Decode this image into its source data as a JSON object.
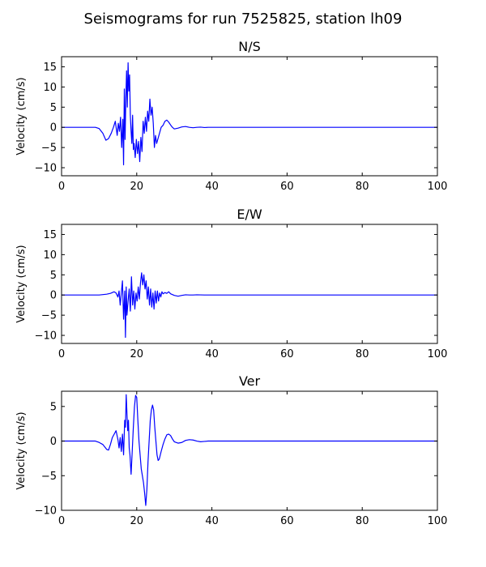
{
  "figure_title": "Seismograms for run 7525825, station lh09",
  "line_color": "#0000ff",
  "chart_data": [
    {
      "type": "line",
      "title": "N/S",
      "xlabel": "",
      "ylabel": "Velocity (cm/s)",
      "xlim": [
        0,
        100
      ],
      "ylim": [
        -12,
        17.5
      ],
      "xticks": [
        0,
        20,
        40,
        60,
        80,
        100
      ],
      "yticks": [
        -10,
        -5,
        0,
        5,
        10,
        15
      ],
      "grid": false,
      "series": [
        {
          "x": [
            0,
            9,
            10,
            11,
            11.8,
            12.5,
            13.2,
            13.8,
            14.3,
            14.8,
            15.1,
            15.4,
            15.7,
            16,
            16.3,
            16.5,
            16.7,
            16.9,
            17.1,
            17.3,
            17.5,
            17.7,
            17.9,
            18.1,
            18.3,
            18.5,
            18.7,
            18.9,
            19.1,
            19.3,
            19.6,
            19.9,
            20.2,
            20.5,
            20.8,
            21.1,
            21.4,
            21.7,
            22,
            22.3,
            22.6,
            22.9,
            23.2,
            23.5,
            23.8,
            24.1,
            24.4,
            24.7,
            25,
            25.3,
            25.6,
            25.9,
            26.2,
            26.5,
            27,
            27.5,
            28,
            28.5,
            29,
            29.5,
            30,
            31,
            32,
            33,
            34,
            35,
            36,
            37,
            38,
            39,
            40,
            45,
            50,
            60,
            80,
            100
          ],
          "y": [
            0,
            0,
            -0.3,
            -1.5,
            -3.2,
            -2.8,
            -1.5,
            0,
            1.5,
            -2,
            1,
            -1,
            2.5,
            -5,
            2,
            -9.3,
            9.5,
            -3,
            7,
            14,
            5,
            16,
            9,
            13,
            3,
            -1,
            -4,
            3,
            -5.5,
            -4,
            -7.5,
            -3,
            -6.5,
            -3.5,
            -8.5,
            -2.5,
            -6,
            1.5,
            -1.5,
            2.5,
            -1,
            4,
            1.5,
            7,
            3,
            5,
            1,
            -5,
            -2,
            -4,
            -3,
            -2,
            -1,
            0,
            0.5,
            1.5,
            1.8,
            1.3,
            0.6,
            0,
            -0.4,
            -0.2,
            0.1,
            0.2,
            0,
            -0.1,
            0,
            0.05,
            -0.05,
            0,
            0,
            0,
            0,
            0,
            0,
            0
          ]
        }
      ]
    },
    {
      "type": "line",
      "title": "E/W",
      "xlabel": "",
      "ylabel": "Velocity (cm/s)",
      "xlim": [
        0,
        100
      ],
      "ylim": [
        -12,
        17.5
      ],
      "xticks": [
        0,
        20,
        40,
        60,
        80,
        100
      ],
      "yticks": [
        -10,
        -5,
        0,
        5,
        10,
        15
      ],
      "grid": false,
      "series": [
        {
          "x": [
            0,
            10,
            11,
            12,
            13,
            14,
            14.5,
            15,
            15.3,
            15.6,
            15.9,
            16.2,
            16.5,
            16.8,
            17,
            17.2,
            17.4,
            17.7,
            18,
            18.3,
            18.6,
            18.9,
            19.2,
            19.5,
            19.8,
            20.1,
            20.4,
            20.7,
            21,
            21.3,
            21.6,
            21.9,
            22.2,
            22.5,
            22.8,
            23.1,
            23.4,
            23.7,
            24,
            24.3,
            24.6,
            24.9,
            25.2,
            25.5,
            25.8,
            26.1,
            26.4,
            26.7,
            27,
            27.5,
            28,
            28.5,
            29,
            30,
            31,
            32,
            33,
            34,
            35,
            36,
            38,
            40,
            45,
            50,
            60,
            80,
            100
          ],
          "y": [
            0,
            0,
            0.1,
            0.2,
            0.4,
            0.8,
            0.5,
            -0.5,
            1,
            -2.5,
            0.5,
            3.5,
            -6,
            1,
            -10.5,
            2,
            -5,
            -1.5,
            1.5,
            -4,
            4.5,
            -2.5,
            1,
            -3.5,
            0.5,
            -1.5,
            2,
            -1,
            3,
            5.5,
            2.5,
            5,
            1.5,
            3.5,
            -1,
            2,
            -2.5,
            1.5,
            -3,
            0.5,
            -3.5,
            1,
            -2,
            1,
            -1.5,
            0.5,
            -0.5,
            0.8,
            0.3,
            0.6,
            0.4,
            0.8,
            0.3,
            -0.1,
            -0.3,
            -0.1,
            0.05,
            0,
            0,
            0.05,
            0,
            0,
            0,
            0,
            0,
            0,
            0
          ]
        }
      ]
    },
    {
      "type": "line",
      "title": "Ver",
      "xlabel": "",
      "ylabel": "Velocity (cm/s)",
      "xlim": [
        0,
        100
      ],
      "ylim": [
        -10,
        7.2
      ],
      "xticks": [
        0,
        20,
        40,
        60,
        80,
        100
      ],
      "yticks": [
        -10,
        -5,
        0,
        5
      ],
      "grid": false,
      "series": [
        {
          "x": [
            0,
            9,
            10,
            11,
            12,
            12.5,
            13,
            13.5,
            14,
            14.5,
            15,
            15.3,
            15.6,
            15.9,
            16.2,
            16.5,
            16.8,
            17,
            17.2,
            17.4,
            17.6,
            17.8,
            18,
            18.2,
            18.5,
            18.8,
            19.1,
            19.4,
            19.7,
            20,
            20.3,
            20.6,
            20.9,
            21.2,
            21.5,
            21.8,
            22.1,
            22.4,
            22.7,
            23,
            23.3,
            23.6,
            23.9,
            24.2,
            24.5,
            24.8,
            25.1,
            25.4,
            25.7,
            26,
            26.5,
            27,
            27.5,
            28,
            28.5,
            29,
            29.5,
            30,
            31,
            32,
            33,
            34,
            35,
            36,
            37,
            38,
            39,
            40,
            45,
            50,
            60,
            80,
            100
          ],
          "y": [
            0,
            0,
            -0.2,
            -0.5,
            -1.2,
            -1.3,
            -0.5,
            0.5,
            1,
            1.5,
            0.2,
            -1,
            0.5,
            -1.5,
            1,
            -2,
            3,
            2,
            6.7,
            4,
            1.5,
            3,
            -1,
            -2,
            -4.8,
            -1.5,
            2,
            5,
            6.6,
            6.3,
            3,
            0,
            -2,
            -4,
            -5,
            -6,
            -7.5,
            -9.3,
            -7,
            -3,
            0,
            3,
            4.5,
            5.2,
            4.5,
            2,
            0,
            -2,
            -2.8,
            -2.6,
            -1.5,
            -0.5,
            0.3,
            0.9,
            1,
            0.8,
            0.3,
            -0.1,
            -0.3,
            -0.2,
            0.1,
            0.2,
            0.15,
            0,
            -0.1,
            -0.05,
            0,
            0,
            0,
            0,
            0,
            0,
            0
          ]
        }
      ]
    }
  ]
}
